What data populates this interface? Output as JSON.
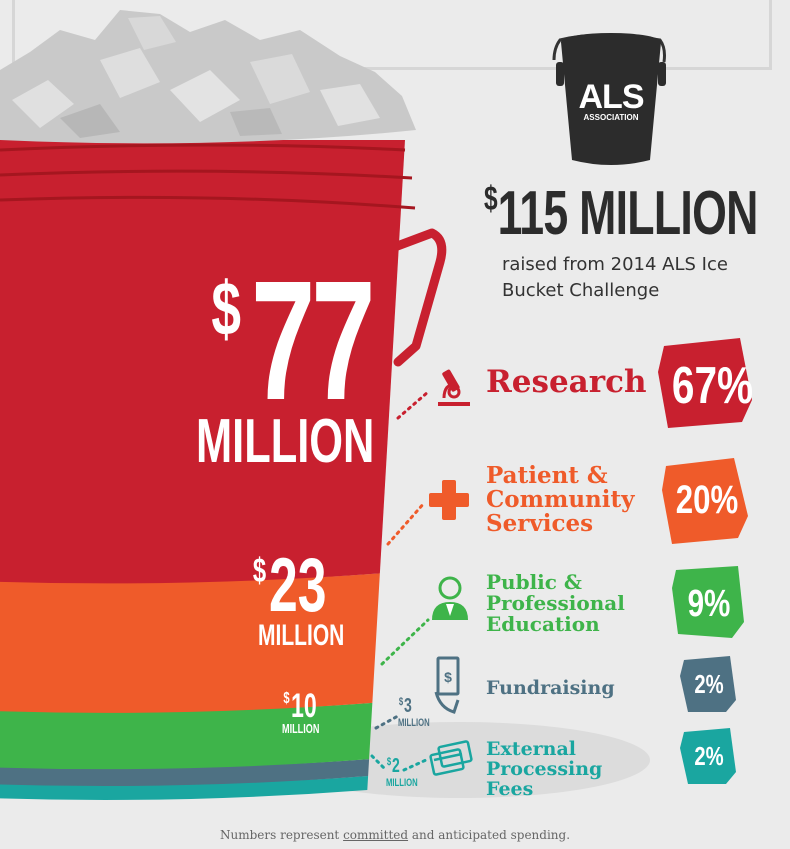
{
  "colors": {
    "research": "#c8202f",
    "patient": "#ef5b2a",
    "education": "#3eb44a",
    "fundraising": "#4e7183",
    "processing": "#1aa6a0",
    "dark": "#2c2c2c"
  },
  "logo": {
    "line1": "ALS",
    "line2": "ASSOCIATION"
  },
  "total": {
    "dollar": "$",
    "amount": "115 MILLION",
    "caption": "raised from 2014 ALS Ice Bucket Challenge"
  },
  "amounts": [
    {
      "dollar": "$",
      "num": "77",
      "unit": "MILLION"
    },
    {
      "dollar": "$",
      "num": "23",
      "unit": "MILLION"
    },
    {
      "dollar": "$",
      "num": "10",
      "unit": "MILLION"
    },
    {
      "dollar": "$",
      "num": "3",
      "unit": "MILLION"
    },
    {
      "dollar": "$",
      "num": "2",
      "unit": "MILLION"
    }
  ],
  "categories": [
    {
      "label": "Research",
      "pct": "67%"
    },
    {
      "label": "Patient & Community Services",
      "pct": "20%"
    },
    {
      "label": "Public & Professional Education",
      "pct": "9%"
    },
    {
      "label": "Fundraising",
      "pct": "2%"
    },
    {
      "label": "External Processing Fees",
      "pct": "2%"
    }
  ],
  "footer": {
    "pre": "Numbers represent ",
    "link": "committed",
    "post": " and anticipated spending."
  },
  "chart_data": {
    "type": "bar",
    "categories": [
      "Research",
      "Patient & Community Services",
      "Public & Professional Education",
      "Fundraising",
      "External Processing Fees"
    ],
    "values": [
      77,
      23,
      10,
      3,
      2
    ],
    "percentages": [
      67,
      20,
      9,
      2,
      2
    ],
    "title": "$115 MILLION",
    "subtitle": "raised from 2014 ALS Ice Bucket Challenge",
    "xlabel": "",
    "ylabel": ""
  }
}
